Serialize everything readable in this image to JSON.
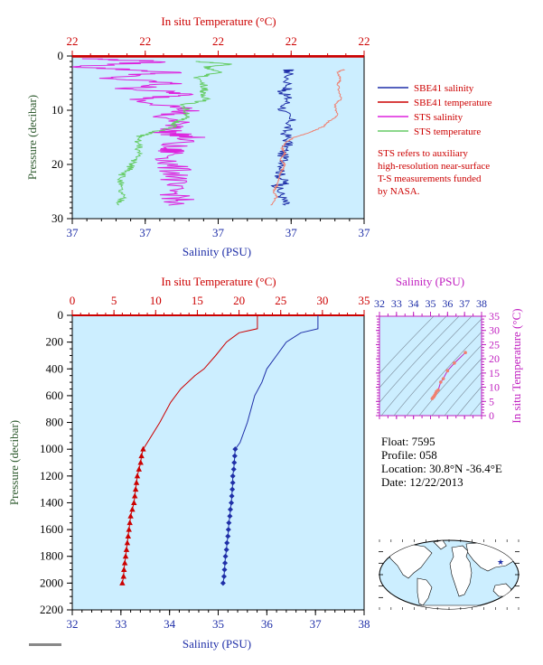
{
  "chart_data": [
    {
      "type": "line",
      "title": "",
      "top_axis": {
        "label": "In situ Temperature (°C)",
        "ticks": [
          "22",
          "22",
          "22",
          "22",
          "22"
        ]
      },
      "bottom_axis": {
        "label": "Salinity (PSU)",
        "ticks": [
          "37",
          "37",
          "37",
          "37",
          "37"
        ]
      },
      "y_axis": {
        "label": "Pressure (decibar)",
        "ticks": [
          "0",
          "10",
          "20",
          "30"
        ],
        "range": [
          0,
          30
        ]
      },
      "legend": {
        "placement": "right",
        "entries": [
          {
            "label": "SBE41 salinity",
            "color": "#1f2fa8"
          },
          {
            "label": "SBE41 temperature",
            "color": "#cc0000"
          },
          {
            "label": "STS salinity",
            "color": "#dd22dd"
          },
          {
            "label": "STS temperature",
            "color": "#66cc66"
          }
        ]
      },
      "note": [
        "STS refers to auxiliary",
        "high-resolution near-surface",
        "T-S measurements funded",
        "by NASA."
      ],
      "series": [
        {
          "name": "SBE41 salinity",
          "color": "#1f2fa8",
          "axis_fraction": [
            [
              0.74,
              2.5
            ],
            [
              0.74,
              3
            ],
            [
              0.74,
              6
            ],
            [
              0.72,
              6.5
            ],
            [
              0.74,
              8
            ],
            [
              0.72,
              10
            ],
            [
              0.75,
              12
            ],
            [
              0.73,
              14
            ],
            [
              0.74,
              16
            ],
            [
              0.72,
              18
            ],
            [
              0.73,
              20
            ],
            [
              0.71,
              22
            ],
            [
              0.73,
              23.5
            ],
            [
              0.7,
              24
            ],
            [
              0.72,
              26
            ],
            [
              0.73,
              27.5
            ]
          ]
        },
        {
          "name": "SBE41 temperature",
          "color": "#f08070",
          "axis_fraction": [
            [
              0.93,
              2.5
            ],
            [
              0.91,
              3
            ],
            [
              0.92,
              4.5
            ],
            [
              0.91,
              5
            ],
            [
              0.92,
              8
            ],
            [
              0.9,
              9
            ],
            [
              0.91,
              11
            ],
            [
              0.88,
              12
            ],
            [
              0.86,
              13
            ],
            [
              0.82,
              14
            ],
            [
              0.76,
              15
            ],
            [
              0.73,
              16
            ],
            [
              0.72,
              17
            ],
            [
              0.73,
              18
            ],
            [
              0.71,
              19
            ],
            [
              0.73,
              20
            ],
            [
              0.72,
              21
            ],
            [
              0.71,
              22
            ],
            [
              0.7,
              24
            ],
            [
              0.69,
              25
            ],
            [
              0.7,
              26
            ],
            [
              0.68,
              27.5
            ]
          ]
        },
        {
          "name": "STS salinity",
          "color": "#dd22dd",
          "axis_fraction": [
            [
              0.05,
              0.5
            ],
            [
              0.3,
              1
            ],
            [
              0.02,
              2
            ],
            [
              0.35,
              3
            ],
            [
              0.1,
              4
            ],
            [
              0.34,
              5
            ],
            [
              0.2,
              6
            ],
            [
              0.39,
              7
            ],
            [
              0.25,
              8
            ],
            [
              0.4,
              10
            ],
            [
              0.3,
              11
            ],
            [
              0.38,
              13
            ],
            [
              0.32,
              14
            ],
            [
              0.4,
              15
            ],
            [
              0.32,
              17
            ],
            [
              0.35,
              18
            ],
            [
              0.33,
              20
            ],
            [
              0.37,
              22
            ],
            [
              0.32,
              24
            ],
            [
              0.37,
              26
            ],
            [
              0.33,
              27.5
            ]
          ]
        },
        {
          "name": "STS temperature",
          "color": "#66cc66",
          "axis_fraction": [
            [
              0.42,
              1
            ],
            [
              0.55,
              1.5
            ],
            [
              0.46,
              2
            ],
            [
              0.5,
              3
            ],
            [
              0.43,
              4
            ],
            [
              0.46,
              6
            ],
            [
              0.44,
              7
            ],
            [
              0.47,
              8
            ],
            [
              0.38,
              9
            ],
            [
              0.4,
              11
            ],
            [
              0.36,
              12
            ],
            [
              0.35,
              13
            ],
            [
              0.28,
              14
            ],
            [
              0.22,
              15
            ],
            [
              0.23,
              17
            ],
            [
              0.22,
              19
            ],
            [
              0.2,
              20
            ],
            [
              0.2,
              21
            ],
            [
              0.17,
              22
            ],
            [
              0.16,
              24
            ],
            [
              0.17,
              26
            ],
            [
              0.16,
              27.5
            ]
          ]
        }
      ]
    },
    {
      "type": "line",
      "title": "",
      "top_axis": {
        "label": "In situ Temperature (°C)",
        "ticks": [
          "0",
          "5",
          "10",
          "15",
          "20",
          "25",
          "30",
          "35"
        ],
        "range": [
          0,
          35
        ]
      },
      "bottom_axis": {
        "label": "Salinity (PSU)",
        "ticks": [
          "32",
          "33",
          "34",
          "35",
          "36",
          "37",
          "38"
        ],
        "range": [
          32,
          38
        ]
      },
      "y_axis": {
        "label": "Pressure (decibar)",
        "ticks": [
          "0",
          "200",
          "400",
          "600",
          "800",
          "1000",
          "1200",
          "1400",
          "1600",
          "1800",
          "2000",
          "2200"
        ],
        "range": [
          0,
          2200
        ]
      },
      "series": [
        {
          "name": "",
          "color": "#cc0000",
          "axis": "temperature",
          "marker": "triangle",
          "points": [
            [
              22.2,
              0
            ],
            [
              22.2,
              100
            ],
            [
              20.0,
              130
            ],
            [
              18.5,
              200
            ],
            [
              17.2,
              300
            ],
            [
              15.8,
              400
            ],
            [
              14.7,
              450
            ],
            [
              13.0,
              550
            ],
            [
              11.8,
              650
            ],
            [
              10.5,
              800
            ],
            [
              9.0,
              950
            ],
            [
              8.5,
              1000
            ],
            [
              8.3,
              1050
            ],
            [
              8.2,
              1100
            ],
            [
              8.0,
              1150
            ],
            [
              7.8,
              1200
            ],
            [
              7.7,
              1250
            ],
            [
              7.6,
              1300
            ],
            [
              7.5,
              1350
            ],
            [
              7.4,
              1400
            ],
            [
              7.2,
              1450
            ],
            [
              7.0,
              1500
            ],
            [
              6.9,
              1550
            ],
            [
              6.8,
              1600
            ],
            [
              6.7,
              1650
            ],
            [
              6.6,
              1700
            ],
            [
              6.5,
              1750
            ],
            [
              6.4,
              1800
            ],
            [
              6.3,
              1850
            ],
            [
              6.2,
              1900
            ],
            [
              6.15,
              1950
            ],
            [
              6.0,
              2000
            ]
          ],
          "markers_from_pressure": 1000
        },
        {
          "name": "",
          "color": "#1f2fa8",
          "axis": "salinity",
          "marker": "diamond",
          "points": [
            [
              37.05,
              0
            ],
            [
              37.05,
              100
            ],
            [
              36.7,
              130
            ],
            [
              36.4,
              200
            ],
            [
              36.2,
              300
            ],
            [
              36.0,
              400
            ],
            [
              35.9,
              500
            ],
            [
              35.75,
              600
            ],
            [
              35.6,
              800
            ],
            [
              35.45,
              950
            ],
            [
              35.35,
              1000
            ],
            [
              35.34,
              1050
            ],
            [
              35.33,
              1100
            ],
            [
              35.32,
              1150
            ],
            [
              35.3,
              1200
            ],
            [
              35.3,
              1250
            ],
            [
              35.29,
              1300
            ],
            [
              35.28,
              1350
            ],
            [
              35.27,
              1400
            ],
            [
              35.25,
              1450
            ],
            [
              35.24,
              1500
            ],
            [
              35.22,
              1550
            ],
            [
              35.21,
              1600
            ],
            [
              35.2,
              1650
            ],
            [
              35.18,
              1700
            ],
            [
              35.17,
              1750
            ],
            [
              35.15,
              1800
            ],
            [
              35.14,
              1850
            ],
            [
              35.13,
              1900
            ],
            [
              35.12,
              1950
            ],
            [
              35.1,
              2000
            ]
          ],
          "markers_from_pressure": 1000
        }
      ]
    },
    {
      "type": "scatter",
      "title": "",
      "top_axis": {
        "label": "Salinity (PSU)",
        "ticks": [
          "32",
          "33",
          "34",
          "35",
          "36",
          "37",
          "38"
        ],
        "range": [
          32,
          38
        ]
      },
      "right_axis": {
        "label": "In situ Temperature (°C)",
        "ticks": [
          "0",
          "5",
          "10",
          "15",
          "20",
          "25",
          "30",
          "35"
        ],
        "range": [
          0,
          35
        ]
      },
      "series": [
        {
          "name": "",
          "color": "#f08070",
          "points": [
            [
              37.05,
              22.2
            ],
            [
              36.4,
              18.5
            ],
            [
              36.0,
              15.8
            ],
            [
              35.75,
              13.0
            ],
            [
              35.6,
              11.8
            ],
            [
              35.45,
              9.0
            ],
            [
              35.35,
              8.5
            ],
            [
              35.3,
              7.8
            ],
            [
              35.25,
              7.2
            ],
            [
              35.2,
              6.7
            ],
            [
              35.15,
              6.4
            ],
            [
              35.1,
              6.0
            ]
          ]
        }
      ]
    }
  ],
  "info": {
    "float": "Float: 7595",
    "profile": "Profile: 058",
    "location": "Location: 30.8°N -36.4°E",
    "date": "Date: 12/22/2013"
  },
  "colors": {
    "plot_bg": "#cceeff",
    "axis": "#000000",
    "top_axis": "#cc0000",
    "bottom_axis": "#1f2fa8",
    "left_label": "#2e5a2e",
    "ts_axis": "#c020c0"
  }
}
